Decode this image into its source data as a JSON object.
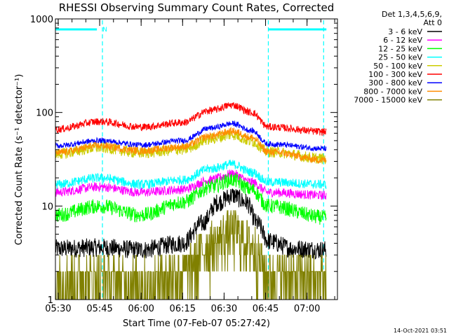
{
  "chart_data": {
    "type": "line",
    "title": "RHESSI Observing Summary Count Rates, Corrected",
    "xlabel": "Start Time (07-Feb-07 05:27:42)",
    "ylabel": "Corrected Count Rate (s⁻¹ detector⁻¹)",
    "yscale": "log",
    "ylim": [
      1,
      1000
    ],
    "yticks": [
      {
        "value": 1,
        "label": "1"
      },
      {
        "value": 10,
        "label": "10"
      },
      {
        "value": 100,
        "label": "100"
      },
      {
        "value": 1000,
        "label": "1000"
      }
    ],
    "xlim": [
      "05:29",
      "07:11"
    ],
    "xticks": [
      "05:30",
      "05:45",
      "06:00",
      "06:15",
      "06:30",
      "06:45",
      "07:00"
    ],
    "grid": false,
    "legend_placement": "right",
    "legend_header": [
      "Det 1,3,4,5,6,9,",
      "Att 0"
    ],
    "series": [
      {
        "name": "3 - 6 keV",
        "color": "#000000",
        "noise": 0.1,
        "values": [
          {
            "t": "05:29",
            "v": 3.5
          },
          {
            "t": "05:45",
            "v": 3.6
          },
          {
            "t": "06:00",
            "v": 3.4
          },
          {
            "t": "06:15",
            "v": 4.0
          },
          {
            "t": "06:22",
            "v": 6.5
          },
          {
            "t": "06:28",
            "v": 11.0
          },
          {
            "t": "06:33",
            "v": 13.0
          },
          {
            "t": "06:38",
            "v": 11.0
          },
          {
            "t": "06:42",
            "v": 6.5
          },
          {
            "t": "06:46",
            "v": 4.2
          },
          {
            "t": "06:55",
            "v": 3.5
          },
          {
            "t": "07:07",
            "v": 3.4
          }
        ]
      },
      {
        "name": "6 - 12 keV",
        "color": "#ff00ff",
        "noise": 0.05,
        "values": [
          {
            "t": "05:29",
            "v": 14
          },
          {
            "t": "05:45",
            "v": 16
          },
          {
            "t": "06:00",
            "v": 14
          },
          {
            "t": "06:15",
            "v": 15
          },
          {
            "t": "06:25",
            "v": 19
          },
          {
            "t": "06:33",
            "v": 22
          },
          {
            "t": "06:40",
            "v": 18
          },
          {
            "t": "06:46",
            "v": 14
          },
          {
            "t": "07:07",
            "v": 13
          }
        ]
      },
      {
        "name": "12 - 25 keV",
        "color": "#00ff00",
        "noise": 0.08,
        "values": [
          {
            "t": "05:29",
            "v": 8
          },
          {
            "t": "05:45",
            "v": 10
          },
          {
            "t": "06:00",
            "v": 8
          },
          {
            "t": "06:15",
            "v": 11
          },
          {
            "t": "06:25",
            "v": 16
          },
          {
            "t": "06:33",
            "v": 19
          },
          {
            "t": "06:40",
            "v": 15
          },
          {
            "t": "06:46",
            "v": 10
          },
          {
            "t": "07:07",
            "v": 7.5
          }
        ]
      },
      {
        "name": "25 - 50 keV",
        "color": "#00ffff",
        "noise": 0.05,
        "values": [
          {
            "t": "05:29",
            "v": 17
          },
          {
            "t": "05:45",
            "v": 20
          },
          {
            "t": "06:00",
            "v": 17
          },
          {
            "t": "06:15",
            "v": 19
          },
          {
            "t": "06:25",
            "v": 25
          },
          {
            "t": "06:33",
            "v": 28
          },
          {
            "t": "06:40",
            "v": 23
          },
          {
            "t": "06:46",
            "v": 18
          },
          {
            "t": "07:07",
            "v": 17
          }
        ]
      },
      {
        "name": "50 - 100 keV",
        "color": "#cccc00",
        "noise": 0.06,
        "values": [
          {
            "t": "05:29",
            "v": 36
          },
          {
            "t": "05:45",
            "v": 42
          },
          {
            "t": "06:00",
            "v": 37
          },
          {
            "t": "06:15",
            "v": 40
          },
          {
            "t": "06:25",
            "v": 52
          },
          {
            "t": "06:33",
            "v": 58
          },
          {
            "t": "06:40",
            "v": 49
          },
          {
            "t": "06:46",
            "v": 38
          },
          {
            "t": "07:07",
            "v": 32
          }
        ]
      },
      {
        "name": "100 - 300 keV",
        "color": "#ff0000",
        "noise": 0.04,
        "values": [
          {
            "t": "05:29",
            "v": 66
          },
          {
            "t": "05:45",
            "v": 80
          },
          {
            "t": "06:00",
            "v": 70
          },
          {
            "t": "06:15",
            "v": 78
          },
          {
            "t": "06:25",
            "v": 105
          },
          {
            "t": "06:33",
            "v": 120
          },
          {
            "t": "06:40",
            "v": 100
          },
          {
            "t": "06:46",
            "v": 70
          },
          {
            "t": "07:07",
            "v": 62
          }
        ]
      },
      {
        "name": "300 - 800 keV",
        "color": "#0000ff",
        "noise": 0.03,
        "values": [
          {
            "t": "05:29",
            "v": 44
          },
          {
            "t": "05:45",
            "v": 50
          },
          {
            "t": "06:00",
            "v": 45
          },
          {
            "t": "06:15",
            "v": 50
          },
          {
            "t": "06:25",
            "v": 68
          },
          {
            "t": "06:33",
            "v": 76
          },
          {
            "t": "06:40",
            "v": 64
          },
          {
            "t": "06:46",
            "v": 46
          },
          {
            "t": "07:07",
            "v": 41
          }
        ]
      },
      {
        "name": "800 - 7000 keV",
        "color": "#ff8c00",
        "noise": 0.04,
        "values": [
          {
            "t": "05:29",
            "v": 37
          },
          {
            "t": "05:45",
            "v": 44
          },
          {
            "t": "06:00",
            "v": 39
          },
          {
            "t": "06:15",
            "v": 43
          },
          {
            "t": "06:25",
            "v": 56
          },
          {
            "t": "06:33",
            "v": 63
          },
          {
            "t": "06:40",
            "v": 54
          },
          {
            "t": "06:46",
            "v": 38
          },
          {
            "t": "07:07",
            "v": 31
          }
        ]
      },
      {
        "name": "7000 - 15000 keV",
        "color": "#808000",
        "noise": 0.3,
        "values": [
          {
            "t": "05:29",
            "v": 1.8
          },
          {
            "t": "05:45",
            "v": 1.7
          },
          {
            "t": "06:00",
            "v": 1.6
          },
          {
            "t": "06:15",
            "v": 2.0
          },
          {
            "t": "06:25",
            "v": 4.0
          },
          {
            "t": "06:33",
            "v": 5.5
          },
          {
            "t": "06:40",
            "v": 4.0
          },
          {
            "t": "06:46",
            "v": 1.9
          },
          {
            "t": "07:07",
            "v": 1.7
          }
        ]
      }
    ],
    "annotations": [
      {
        "type": "vline",
        "t": "05:46",
        "color": "#00ffff"
      },
      {
        "type": "vline",
        "t": "06:46",
        "color": "#00ffff"
      },
      {
        "type": "vline",
        "t": "07:06",
        "color": "#00ffff"
      },
      {
        "type": "hbar",
        "t0": "05:29",
        "t1": "05:44",
        "color": "#00ffff",
        "label": "N"
      },
      {
        "type": "hbar",
        "t0": "06:46",
        "t1": "07:07",
        "color": "#00ffff",
        "label": ""
      }
    ],
    "footer": "14-Oct-2021 03:51"
  }
}
